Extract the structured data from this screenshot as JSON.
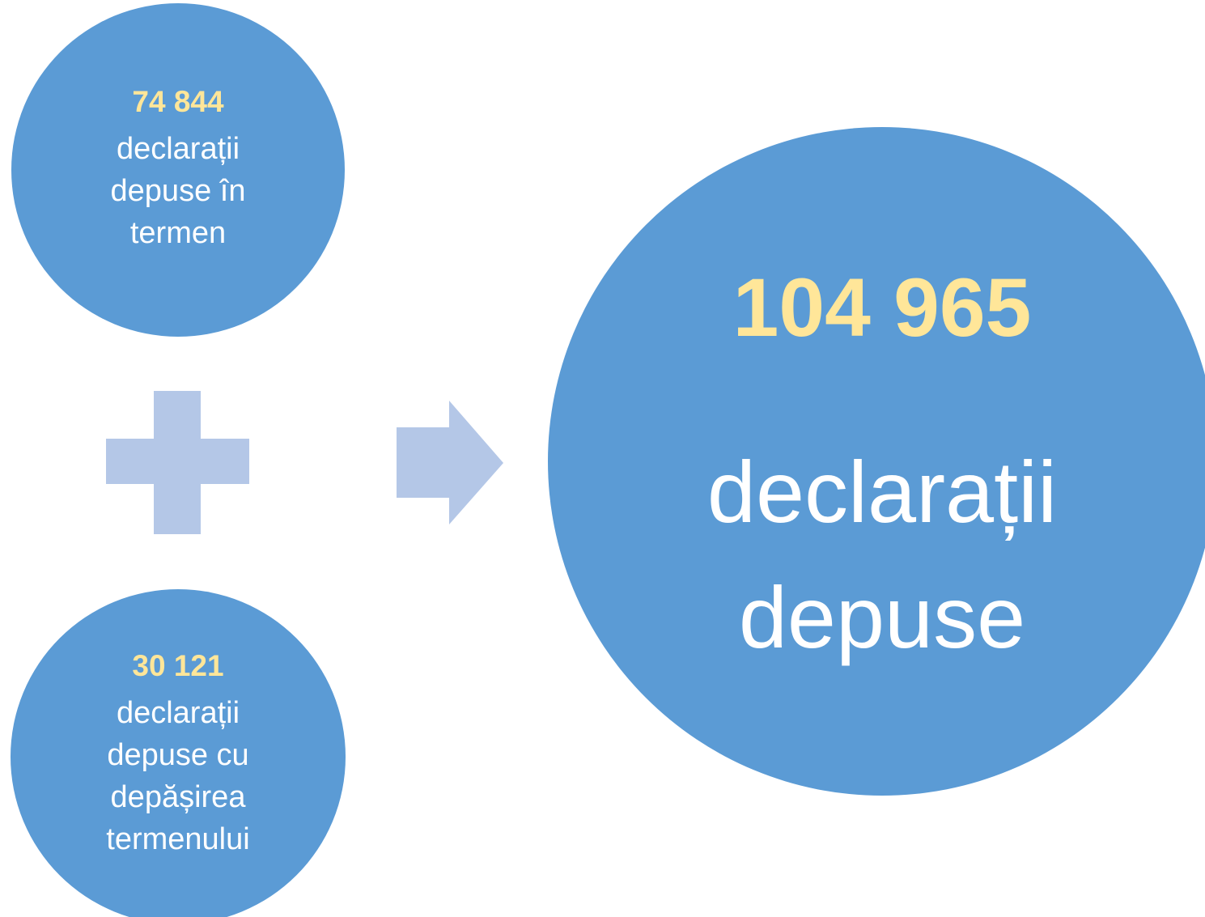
{
  "nodes": [
    {
      "number": "74 844",
      "lines": [
        "declarații",
        "depuse în",
        "termen"
      ]
    },
    {
      "number": "30 121",
      "lines": [
        "declarații",
        "depuse cu",
        "depășirea",
        "termenului"
      ]
    }
  ],
  "result": {
    "number": "104 965",
    "lines": [
      "declarații",
      "depuse"
    ]
  }
}
